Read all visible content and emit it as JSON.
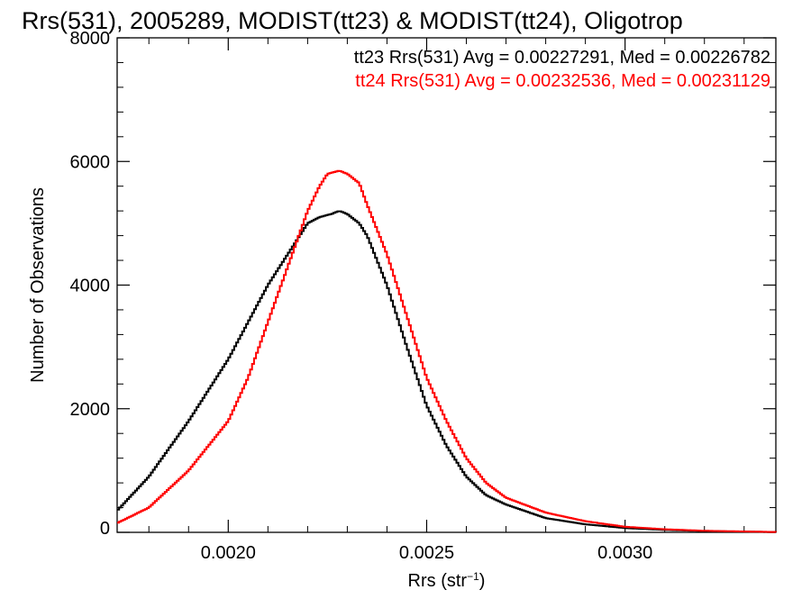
{
  "chart_data": {
    "type": "line",
    "title": "Rrs(531), 2005289, MODIST(tt23) & MODIST(tt24), Oligotrop",
    "xlabel": "Rrs (str",
    "xlabel_sup": "−1",
    "xlabel_close": ")",
    "ylabel": "Number of Observations",
    "xlim": [
      0.00172,
      0.00338
    ],
    "ylim": [
      0,
      8000
    ],
    "x_ticks": [
      {
        "value": 0.002,
        "label": "0.0020"
      },
      {
        "value": 0.0025,
        "label": "0.0025"
      },
      {
        "value": 0.003,
        "label": "0.0030"
      }
    ],
    "y_ticks": [
      {
        "value": 0,
        "label": "0"
      },
      {
        "value": 2000,
        "label": "2000"
      },
      {
        "value": 4000,
        "label": "4000"
      },
      {
        "value": 6000,
        "label": "6000"
      },
      {
        "value": 8000,
        "label": "8000"
      }
    ],
    "annotations": [
      {
        "text": "tt23 Rrs(531) Avg = 0.00227291, Med = 0.00226782",
        "color": "#000000"
      },
      {
        "text": "tt24 Rrs(531) Avg = 0.00232536, Med = 0.00231129",
        "color": "#ff0000"
      }
    ],
    "series": [
      {
        "color": "#000000",
        "x": [
          0.00172,
          0.0018,
          0.0019,
          0.002,
          0.00205,
          0.0021,
          0.00215,
          0.0022,
          0.00223,
          0.00226,
          0.00228,
          0.0023,
          0.00233,
          0.00235,
          0.0024,
          0.00245,
          0.0025,
          0.00255,
          0.0026,
          0.00265,
          0.0027,
          0.0028,
          0.0029,
          0.003,
          0.0031,
          0.0032,
          0.00338
        ],
        "values": [
          350,
          900,
          1800,
          2800,
          3400,
          4000,
          4500,
          5000,
          5100,
          5150,
          5200,
          5150,
          5000,
          4800,
          4000,
          3000,
          2050,
          1400,
          900,
          600,
          450,
          230,
          130,
          70,
          40,
          20,
          5
        ]
      },
      {
        "color": "#ff0000",
        "x": [
          0.00172,
          0.0018,
          0.0019,
          0.002,
          0.00205,
          0.0021,
          0.00215,
          0.0022,
          0.00223,
          0.00225,
          0.00228,
          0.0023,
          0.00233,
          0.00235,
          0.0024,
          0.00245,
          0.0025,
          0.00255,
          0.0026,
          0.00265,
          0.0027,
          0.0028,
          0.0029,
          0.003,
          0.0031,
          0.0032,
          0.00338
        ],
        "values": [
          150,
          400,
          1000,
          1800,
          2500,
          3400,
          4300,
          5200,
          5600,
          5800,
          5850,
          5800,
          5650,
          5300,
          4500,
          3500,
          2500,
          1800,
          1200,
          800,
          560,
          320,
          180,
          90,
          50,
          25,
          5
        ]
      }
    ]
  }
}
